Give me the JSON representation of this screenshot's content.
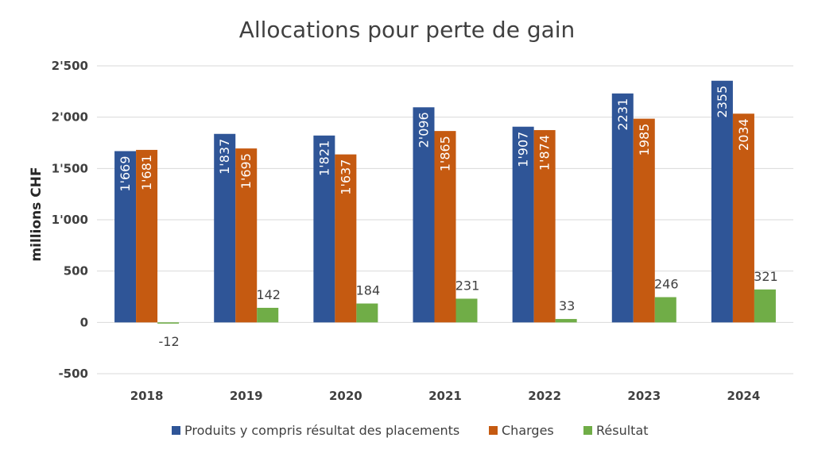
{
  "chart_data": {
    "type": "bar",
    "title": "Allocations pour perte de gain",
    "xlabel": "",
    "ylabel": "millions CHF",
    "ylim": [
      -500,
      2500
    ],
    "yticks": [
      -500,
      0,
      500,
      1000,
      1500,
      2000,
      2500
    ],
    "ytick_labels": [
      "-500",
      "0",
      "500",
      "1'000",
      "1'500",
      "2'000",
      "2'500"
    ],
    "grid": true,
    "legend_position": "bottom",
    "categories": [
      "2018",
      "2019",
      "2020",
      "2021",
      "2022",
      "2023",
      "2024"
    ],
    "series": [
      {
        "name": "Produits y compris résultat des placements",
        "color": "#2F5597",
        "values": [
          1669,
          1837,
          1821,
          2096,
          1907,
          2231,
          2355
        ],
        "labels": [
          "1'669",
          "1'837",
          "1'821",
          "2'096",
          "1'907",
          "2231",
          "2355"
        ],
        "label_position": "inside"
      },
      {
        "name": "Charges",
        "color": "#C55A11",
        "values": [
          1681,
          1695,
          1637,
          1865,
          1874,
          1985,
          2034
        ],
        "labels": [
          "1'681",
          "1'695",
          "1'637",
          "1'865",
          "1'874",
          "1985",
          "2034"
        ],
        "label_position": "inside"
      },
      {
        "name": "Résultat",
        "color": "#70AD47",
        "values": [
          -12,
          142,
          184,
          231,
          33,
          246,
          321
        ],
        "labels": [
          "-12",
          "142",
          "184",
          "231",
          "33",
          "246",
          "321"
        ],
        "label_position": "outside"
      }
    ]
  }
}
